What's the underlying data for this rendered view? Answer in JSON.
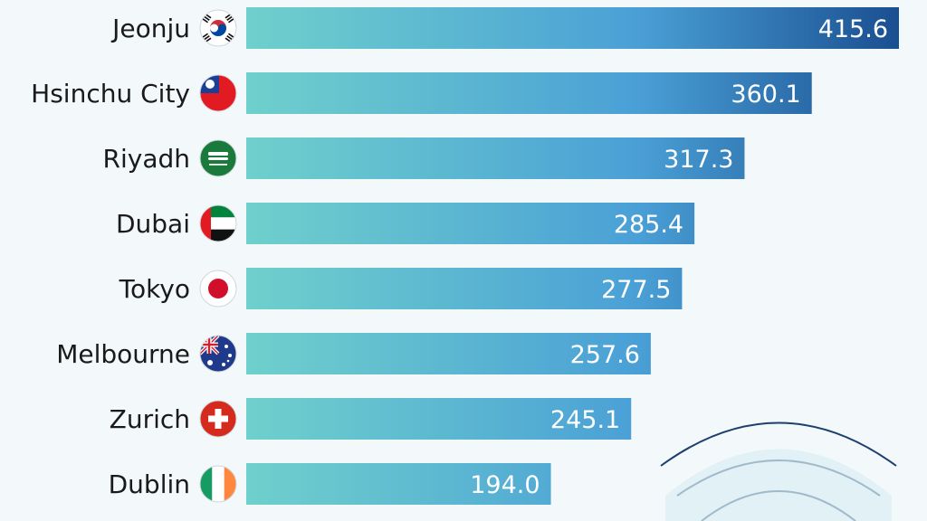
{
  "chart_data": {
    "type": "bar",
    "orientation": "horizontal",
    "categories": [
      "Jeonju",
      "Hsinchu City",
      "Riyadh",
      "Dubai",
      "Tokyo",
      "Melbourne",
      "Zurich",
      "Dublin"
    ],
    "values": [
      415.6,
      360.1,
      317.3,
      285.4,
      277.5,
      257.6,
      245.1,
      194.0
    ],
    "value_labels": [
      "415.6",
      "360.1",
      "317.3",
      "285.4",
      "277.5",
      "257.6",
      "245.1",
      "194.0"
    ],
    "flags": [
      "south-korea-flag-icon",
      "taiwan-flag-icon",
      "saudi-arabia-flag-icon",
      "uae-flag-icon",
      "japan-flag-icon",
      "australia-flag-icon",
      "switzerland-flag-icon",
      "ireland-flag-icon"
    ],
    "xlim": [
      0,
      415.6
    ],
    "grid": false,
    "colors": {
      "bar_start": "#6fd0cc",
      "bar_end": "#1a4f91",
      "text": "#1a1a1a",
      "value_text": "#ffffff",
      "background": "#f3f8fb"
    }
  }
}
